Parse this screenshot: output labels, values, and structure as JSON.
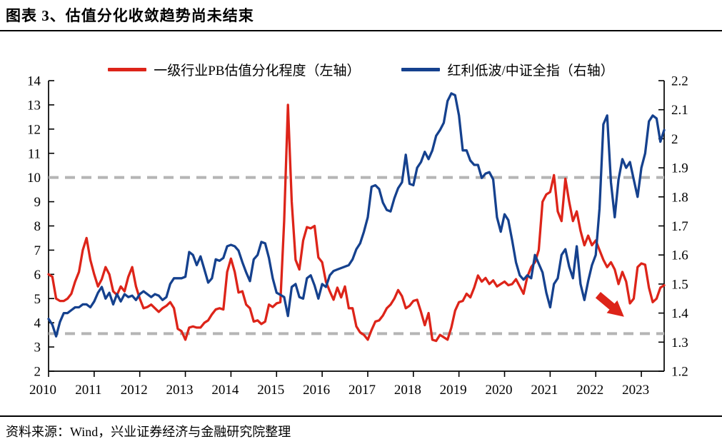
{
  "title": "图表 3、估值分化收敛趋势尚未结束",
  "source": "资料来源：Wind，兴业证券经济与金融研究院整理",
  "colors": {
    "red_series": "#dd2419",
    "blue_series": "#15418e",
    "dashed_reference": "#b5b5b5",
    "axis": "#000000"
  },
  "legend": [
    {
      "label": "一级行业PB估值分化程度（左轴）",
      "color": "#dd2419"
    },
    {
      "label": "红利低波/中证全指（右轴）",
      "color": "#15418e"
    }
  ],
  "chart_data": {
    "type": "line",
    "x_start": "2010-01",
    "x_step_months": 1,
    "x_tick_labels": [
      "2010",
      "2011",
      "2012",
      "2013",
      "2014",
      "2015",
      "2016",
      "2017",
      "2018",
      "2019",
      "2020",
      "2021",
      "2022",
      "2023"
    ],
    "left_axis": {
      "min": 2,
      "max": 14,
      "tick_labels": [
        "14",
        "13",
        "12",
        "11",
        "10",
        "9",
        "8",
        "7",
        "6",
        "5",
        "4",
        "3",
        "2"
      ]
    },
    "right_axis": {
      "min": 1.2,
      "max": 2.2,
      "tick_labels": [
        "2.2",
        "2.1",
        "2",
        "1.9",
        "1.8",
        "1.7",
        "1.6",
        "1.5",
        "1.4",
        "1.3",
        "1.2"
      ]
    },
    "grid": "off",
    "legend_position": "top",
    "reference_lines_left_axis": [
      10.0,
      3.55
    ],
    "series": [
      {
        "name": "一级行业PB估值分化程度（左轴）",
        "axis": "left",
        "color": "#dd2419",
        "values": [
          6.0,
          5.9,
          5.0,
          4.9,
          4.9,
          5.0,
          5.2,
          5.7,
          6.1,
          7.0,
          7.5,
          6.6,
          6.0,
          5.5,
          5.8,
          6.3,
          6.0,
          5.3,
          5.15,
          5.5,
          5.3,
          5.9,
          6.3,
          5.5,
          5.0,
          4.6,
          4.65,
          4.75,
          4.6,
          4.45,
          4.6,
          4.7,
          4.85,
          4.6,
          3.75,
          3.65,
          3.3,
          3.8,
          3.85,
          3.8,
          3.8,
          4.0,
          4.1,
          4.35,
          4.55,
          4.6,
          4.55,
          6.1,
          6.65,
          6.1,
          5.25,
          5.3,
          4.75,
          4.6,
          4.05,
          4.1,
          3.95,
          4.05,
          4.75,
          4.65,
          4.8,
          4.85,
          8.2,
          13.0,
          9.0,
          6.6,
          6.2,
          7.4,
          7.95,
          7.9,
          8.0,
          6.7,
          6.5,
          5.7,
          5.3,
          4.95,
          5.45,
          5.05,
          5.5,
          4.6,
          4.6,
          3.85,
          3.6,
          3.5,
          3.3,
          3.7,
          4.05,
          4.1,
          4.3,
          4.6,
          4.75,
          5.0,
          5.35,
          5.1,
          4.6,
          4.7,
          4.9,
          4.95,
          4.45,
          3.9,
          4.4,
          3.3,
          3.25,
          3.5,
          3.4,
          3.3,
          3.8,
          4.5,
          4.85,
          4.9,
          5.2,
          5.05,
          5.45,
          5.95,
          5.7,
          5.85,
          5.6,
          5.75,
          5.5,
          5.6,
          5.7,
          5.55,
          5.6,
          5.8,
          5.5,
          5.2,
          5.9,
          6.3,
          6.5,
          7.0,
          9.0,
          9.3,
          9.4,
          10.1,
          8.6,
          8.2,
          9.95,
          9.0,
          8.2,
          8.6,
          7.8,
          7.2,
          7.6,
          7.2,
          7.4,
          7.0,
          6.6,
          6.3,
          6.5,
          6.2,
          5.6,
          6.1,
          5.7,
          4.8,
          5.0,
          6.3,
          6.45,
          6.4,
          5.45,
          4.85,
          5.0,
          5.45,
          5.55
        ]
      },
      {
        "name": "红利低波/中证全指（右轴）",
        "axis": "right",
        "color": "#15418e",
        "values": [
          1.38,
          1.36,
          1.32,
          1.37,
          1.4,
          1.4,
          1.41,
          1.42,
          1.42,
          1.43,
          1.43,
          1.42,
          1.44,
          1.47,
          1.49,
          1.45,
          1.47,
          1.43,
          1.465,
          1.44,
          1.465,
          1.455,
          1.46,
          1.445,
          1.465,
          1.475,
          1.465,
          1.455,
          1.465,
          1.46,
          1.445,
          1.455,
          1.5,
          1.52,
          1.52,
          1.52,
          1.525,
          1.61,
          1.6,
          1.565,
          1.595,
          1.55,
          1.505,
          1.52,
          1.585,
          1.58,
          1.59,
          1.63,
          1.635,
          1.63,
          1.615,
          1.575,
          1.54,
          1.51,
          1.585,
          1.6,
          1.645,
          1.64,
          1.59,
          1.52,
          1.47,
          1.463,
          1.455,
          1.39,
          1.49,
          1.5,
          1.455,
          1.45,
          1.52,
          1.53,
          1.495,
          1.45,
          1.5,
          1.49,
          1.53,
          1.545,
          1.55,
          1.555,
          1.56,
          1.565,
          1.585,
          1.62,
          1.64,
          1.68,
          1.73,
          1.835,
          1.84,
          1.827,
          1.78,
          1.755,
          1.75,
          1.795,
          1.83,
          1.85,
          1.945,
          1.845,
          1.84,
          1.9,
          1.92,
          1.955,
          1.93,
          1.96,
          2.01,
          2.03,
          2.055,
          2.13,
          2.156,
          2.15,
          2.08,
          1.96,
          1.96,
          1.925,
          1.91,
          1.91,
          1.865,
          1.88,
          1.885,
          1.86,
          1.73,
          1.68,
          1.74,
          1.72,
          1.65,
          1.575,
          1.53,
          1.515,
          1.53,
          1.52,
          1.6,
          1.57,
          1.54,
          1.47,
          1.42,
          1.5,
          1.52,
          1.6,
          1.62,
          1.56,
          1.52,
          1.63,
          1.5,
          1.445,
          1.51,
          1.565,
          1.6,
          1.76,
          2.05,
          2.08,
          1.85,
          1.73,
          1.86,
          1.93,
          1.9,
          1.92,
          1.86,
          1.8,
          1.9,
          1.95,
          2.06,
          2.08,
          2.07,
          1.99,
          2.03
        ]
      }
    ],
    "annotation_arrow": {
      "color": "#dd2419",
      "from": {
        "year": 2022.05,
        "value_left": 5.15
      },
      "to": {
        "year": 2022.62,
        "value_left": 4.25
      }
    }
  }
}
